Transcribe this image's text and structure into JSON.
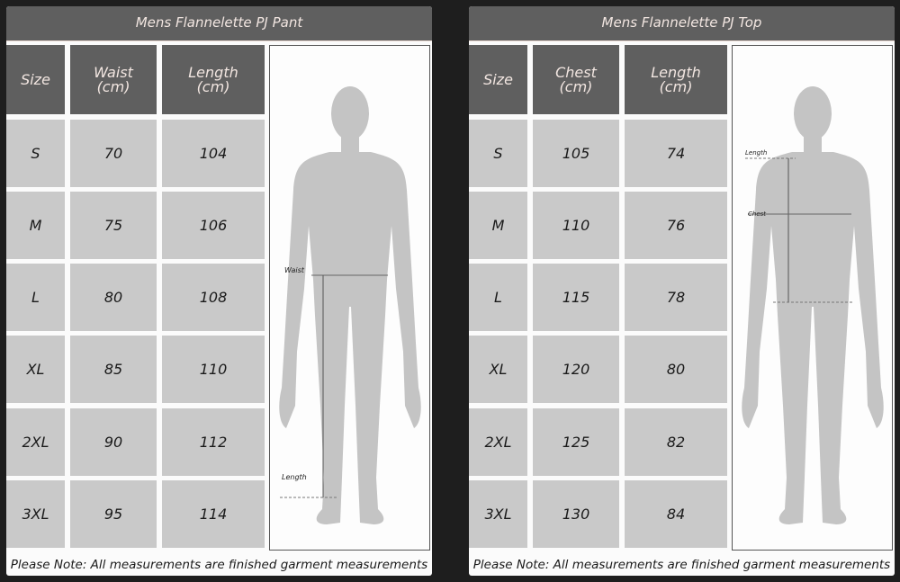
{
  "colors": {
    "header": "#5f5f5f",
    "cell": "#c9c9c9",
    "silhouette": "#c4c4c4",
    "background": "#1e1e1e"
  },
  "pant": {
    "title": "Mens Flannelette PJ Pant",
    "headers": [
      "Size",
      "Waist\n(cm)",
      "Length\n(cm)"
    ],
    "rows": [
      [
        "S",
        "70",
        "104"
      ],
      [
        "M",
        "75",
        "106"
      ],
      [
        "L",
        "80",
        "108"
      ],
      [
        "XL",
        "85",
        "110"
      ],
      [
        "2XL",
        "90",
        "112"
      ],
      [
        "3XL",
        "95",
        "114"
      ]
    ],
    "figure_labels": {
      "waist": "Waist",
      "length": "Length"
    },
    "note": "Please Note: All measurements are finished garment measurements"
  },
  "top": {
    "title": "Mens Flannelette PJ Top",
    "headers": [
      "Size",
      "Chest\n(cm)",
      "Length\n(cm)"
    ],
    "rows": [
      [
        "S",
        "105",
        "74"
      ],
      [
        "M",
        "110",
        "76"
      ],
      [
        "L",
        "115",
        "78"
      ],
      [
        "XL",
        "120",
        "80"
      ],
      [
        "2XL",
        "125",
        "82"
      ],
      [
        "3XL",
        "130",
        "84"
      ]
    ],
    "figure_labels": {
      "length": "Length",
      "chest": "Chest"
    },
    "note": "Please Note: All measurements are finished garment measurements"
  }
}
